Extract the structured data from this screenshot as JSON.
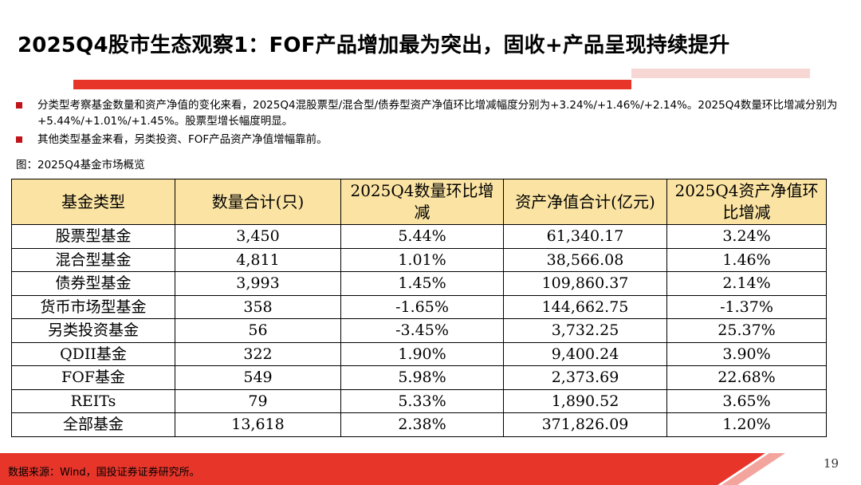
{
  "header": {
    "title": "2025Q4股市生态观察1：FOF产品增加最为突出，固收+产品呈现持续提升",
    "accent_color": "#e8352a"
  },
  "bullets": [
    "分类型考察基金数量和资产净值的变化来看，2025Q4混股票型/混合型/债券型资产净值环比增减幅度分别为+3.24%/+1.46%/+2.14%。2025Q4数量环比增减分别为+5.44%/+1.01%/+1.45%。股票型增长幅度明显。",
    "其他类型基金来看，另类投资、FOF产品资产净值增幅靠前。"
  ],
  "figure_caption": "图：2025Q4基金市场概览",
  "table": {
    "headers": [
      "基金类型",
      "数量合计(只)",
      "2025Q4数量环比增减",
      "资产净值合计(亿元)",
      "2025Q4资产净值环比增减"
    ],
    "rows": [
      [
        "股票型基金",
        "3,450",
        "5.44%",
        "61,340.17",
        "3.24%"
      ],
      [
        "混合型基金",
        "4,811",
        "1.01%",
        "38,566.08",
        "1.46%"
      ],
      [
        "债券型基金",
        "3,993",
        "1.45%",
        "109,860.37",
        "2.14%"
      ],
      [
        "货币市场型基金",
        "358",
        "-1.65%",
        "144,662.75",
        "-1.37%"
      ],
      [
        "另类投资基金",
        "56",
        "-3.45%",
        "3,732.25",
        "25.37%"
      ],
      [
        "QDII基金",
        "322",
        "1.90%",
        "9,400.24",
        "3.90%"
      ],
      [
        "FOF基金",
        "549",
        "5.98%",
        "2,373.69",
        "22.68%"
      ],
      [
        "REITs",
        "79",
        "5.33%",
        "1,890.52",
        "3.65%"
      ],
      [
        "全部基金",
        "13,618",
        "2.38%",
        "371,826.09",
        "1.20%"
      ]
    ],
    "header_bg": "#fbe4a3"
  },
  "footer": {
    "source": "数据来源：Wind，国投证券证券研究所。",
    "page_number": "19",
    "band_color": "#e8352a"
  }
}
